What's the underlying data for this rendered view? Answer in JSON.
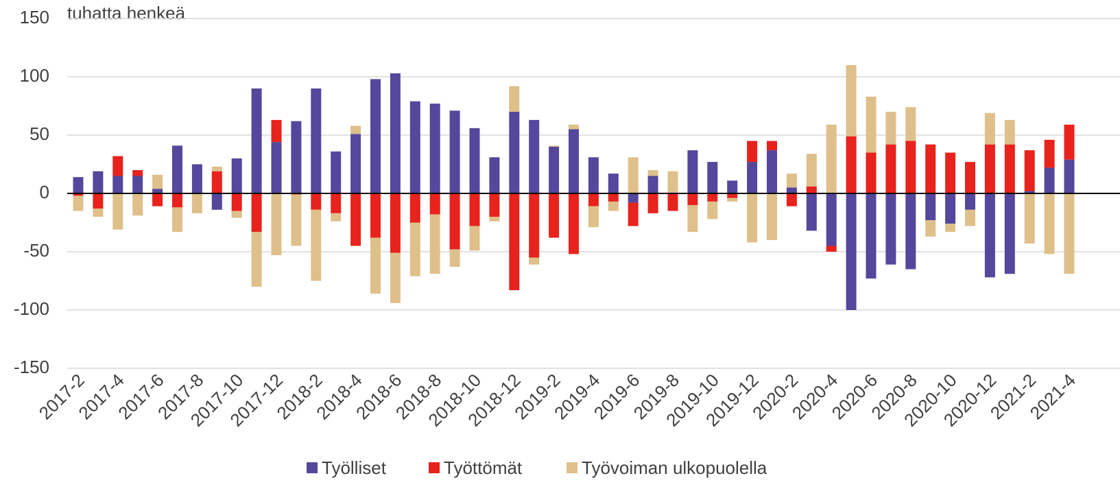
{
  "chart_data": {
    "type": "stacked-bar",
    "y_label": "tuhatta henkeä",
    "categories": [
      "2017-2",
      null,
      "2017-4",
      null,
      "2017-6",
      null,
      "2017-8",
      null,
      "2017-10",
      null,
      "2017-12",
      null,
      "2018-2",
      null,
      "2018-4",
      null,
      "2018-6",
      null,
      "2018-8",
      null,
      "2018-10",
      null,
      "2018-12",
      null,
      "2019-2",
      null,
      "2019-4",
      null,
      "2019-6",
      null,
      "2019-8",
      null,
      "2019-10",
      null,
      "2019-12",
      null,
      "2020-2",
      null,
      "2020-4",
      null,
      "2020-6",
      null,
      "2020-8",
      null,
      "2020-10",
      null,
      "2020-12",
      null,
      "2021-2",
      null,
      "2021-4"
    ],
    "series": [
      {
        "name": "Työlliset",
        "color": "#54479c",
        "values": [
          14,
          19,
          15,
          15,
          4,
          41,
          25,
          -14,
          30,
          90,
          44,
          62,
          90,
          36,
          51,
          98,
          103,
          79,
          77,
          71,
          56,
          31,
          70,
          63,
          40,
          55,
          31,
          17,
          -8,
          15,
          0,
          37,
          27,
          11,
          27,
          37,
          5,
          -32,
          -45,
          -100,
          -73,
          -61,
          -65,
          -23,
          -26,
          -14,
          -72,
          -69,
          2,
          22,
          29
        ]
      },
      {
        "name": "Työttömät",
        "color": "#e8221c",
        "values": [
          -2,
          -13,
          17,
          5,
          -11,
          -12,
          0,
          19,
          -15,
          -33,
          19,
          -1,
          -14,
          -17,
          -45,
          -38,
          -51,
          -25,
          -18,
          -48,
          -28,
          -20,
          -83,
          -55,
          -38,
          -52,
          -11,
          -7,
          -20,
          -17,
          -15,
          -10,
          -7,
          -4,
          18,
          8,
          -11,
          6,
          -5,
          49,
          35,
          42,
          45,
          42,
          35,
          27,
          42,
          42,
          35,
          24,
          30
        ]
      },
      {
        "name": "Työvoiman ulkopuolella",
        "color": "#dfc08a",
        "values": [
          -13,
          -7,
          -31,
          -19,
          12,
          -21,
          -17,
          4,
          -6,
          -47,
          -53,
          -44,
          -61,
          -7,
          7,
          -48,
          -43,
          -46,
          -51,
          -15,
          -21,
          -4,
          22,
          -6,
          1,
          4,
          -18,
          -8,
          31,
          5,
          19,
          -23,
          -15,
          -3,
          -42,
          -40,
          12,
          28,
          59,
          61,
          48,
          28,
          29,
          -14,
          -7,
          -14,
          27,
          21,
          -43,
          -52,
          -69
        ]
      }
    ],
    "ylim": [
      -150,
      150
    ],
    "yticks": [
      -150,
      -100,
      -50,
      0,
      50,
      100,
      150
    ],
    "grid": true
  }
}
